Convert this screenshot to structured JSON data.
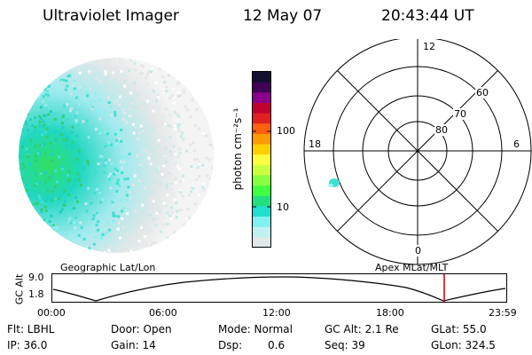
{
  "header": {
    "instrument": "Ultraviolet Imager",
    "date": "12 May 07",
    "time": "20:43:44 UT"
  },
  "colorbar": {
    "unit_label": "photon cm⁻²s⁻¹",
    "ticks": [
      "100",
      "10"
    ],
    "colors": [
      "#101030",
      "#400055",
      "#8b008b",
      "#c00030",
      "#e02020",
      "#ff6010",
      "#ff9a00",
      "#ffd000",
      "#ffff40",
      "#ccff40",
      "#88ff40",
      "#40ff40",
      "#20e080",
      "#20e0d0",
      "#80f0f0",
      "#c0f0f0",
      "#e0e8e8"
    ]
  },
  "polar_plot": {
    "mlt_labels": {
      "top": "12",
      "left": "18",
      "right": "6",
      "bottom": "0"
    },
    "lat_labels": [
      "60",
      "70",
      "80"
    ]
  },
  "timeline": {
    "left_title": "Geographic Lat/Lon",
    "right_title": "Apex MLat/MLT",
    "axis_label": "GC Alt",
    "y_ticks": [
      "9.0",
      "1.8"
    ],
    "x_ticks": [
      "00:00",
      "06:00",
      "12:00",
      "18:00",
      "23:59"
    ],
    "current_marker_color": "#cc0000"
  },
  "info": {
    "row1": {
      "filter": "Flt: LBHL",
      "door": "Door: Open",
      "mode": "Mode: Normal",
      "gc_alt": "GC Alt: 2.1 Re",
      "glat": "GLat: 55.0"
    },
    "row2": {
      "ip": "IP: 36.0",
      "gain": "Gain: 14",
      "dsp_label": "Dsp:",
      "dsp_value": "0.6",
      "seq": "Seq: 39",
      "glon": "GLon: 324.5"
    }
  }
}
